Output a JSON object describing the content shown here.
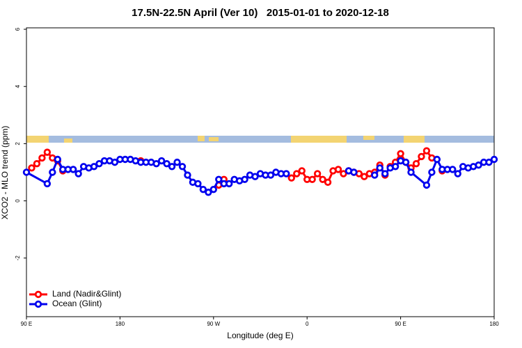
{
  "chart_data": {
    "type": "line",
    "title": "17.5N-22.5N April (Ver 10)   2015-01-01 to 2020-12-18",
    "x_label": "Longitude (deg E)",
    "y_label": "XCO2 - MLO trend (ppm)",
    "xlim": [
      90,
      540
    ],
    "xticks": [
      {
        "value": 90,
        "label": "90 E"
      },
      {
        "value": 180,
        "label": "180"
      },
      {
        "value": 270,
        "label": "90 W"
      },
      {
        "value": 360,
        "label": "0"
      },
      {
        "value": 450,
        "label": "90 E"
      },
      {
        "value": 540,
        "label": "180"
      }
    ],
    "ylim": [
      -4.05,
      6.05
    ],
    "yticks": [
      -2,
      0,
      2,
      4,
      6
    ],
    "legend": "bottom-left",
    "series": [
      {
        "name": "Land (Nadir&Glint)",
        "color": "#ff0000",
        "x": [
          95,
          100,
          105,
          110,
          115,
          120,
          125,
          130,
          200,
          205,
          275,
          280,
          285,
          345,
          350,
          355,
          360,
          365,
          370,
          375,
          380,
          385,
          390,
          395,
          400,
          405,
          410,
          415,
          420,
          425,
          430,
          435,
          440,
          445,
          450,
          455,
          460,
          465,
          470,
          475,
          480,
          485,
          490
        ],
        "values": [
          1.15,
          1.3,
          1.5,
          1.7,
          1.5,
          1.4,
          1.05,
          null,
          1.4,
          null,
          0.55,
          0.75,
          null,
          0.8,
          0.95,
          1.05,
          0.75,
          0.75,
          0.95,
          0.75,
          0.65,
          1.05,
          1.1,
          0.95,
          1.05,
          1.0,
          0.95,
          0.85,
          0.95,
          1.0,
          1.25,
          0.9,
          1.2,
          1.35,
          1.65,
          1.35,
          1.15,
          1.3,
          1.55,
          1.75,
          1.5,
          null,
          1.05
        ]
      },
      {
        "name": "Ocean (Glint)",
        "color": "#0000ee",
        "x": [
          90,
          110,
          115,
          120,
          125,
          130,
          135,
          140,
          145,
          150,
          155,
          160,
          165,
          170,
          175,
          180,
          185,
          190,
          195,
          200,
          205,
          210,
          215,
          220,
          225,
          230,
          235,
          240,
          245,
          250,
          255,
          260,
          265,
          270,
          275,
          280,
          285,
          290,
          295,
          300,
          305,
          310,
          315,
          320,
          325,
          330,
          335,
          340,
          345,
          400,
          405,
          410,
          425,
          430,
          435,
          440,
          445,
          450,
          455,
          460,
          475,
          480,
          485,
          490,
          495,
          500,
          505,
          510,
          515,
          520,
          525,
          530,
          535,
          540
        ],
        "values": [
          1.0,
          0.6,
          1.0,
          1.45,
          1.1,
          1.1,
          1.1,
          0.95,
          1.2,
          1.15,
          1.2,
          1.3,
          1.4,
          1.4,
          1.35,
          1.45,
          1.45,
          1.45,
          1.4,
          1.35,
          1.35,
          1.35,
          1.3,
          1.4,
          1.3,
          1.2,
          1.35,
          1.2,
          0.9,
          0.65,
          0.6,
          0.4,
          0.3,
          0.4,
          0.75,
          0.6,
          0.6,
          0.75,
          0.7,
          0.75,
          0.9,
          0.85,
          0.95,
          0.9,
          0.9,
          1.0,
          0.95,
          0.95,
          null,
          1.05,
          1.0,
          null,
          0.9,
          1.15,
          0.95,
          1.15,
          1.2,
          1.4,
          1.35,
          1.0,
          0.55,
          1.0,
          1.45,
          1.1,
          1.1,
          1.1,
          0.95,
          1.2,
          1.15,
          1.2,
          1.25,
          1.35,
          1.35,
          1.45
        ]
      }
    ]
  }
}
